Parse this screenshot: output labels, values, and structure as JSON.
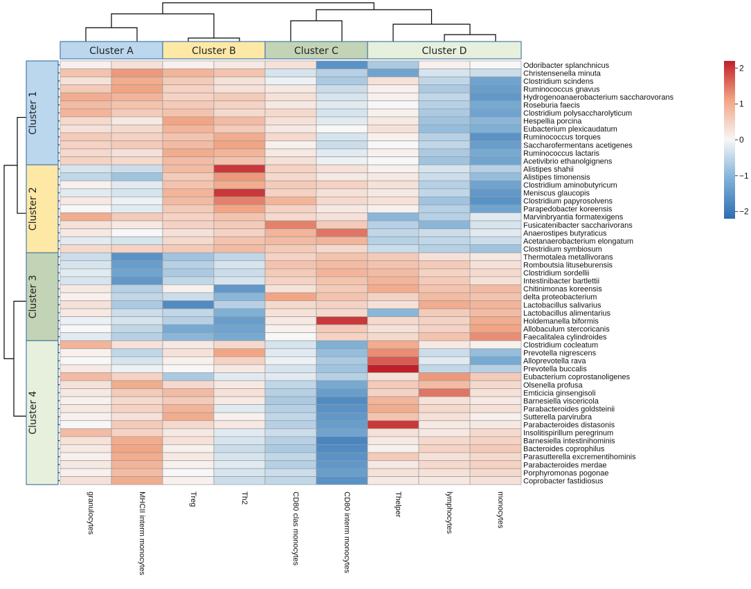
{
  "chart_data": {
    "type": "heatmap",
    "color_scale": {
      "min": -2.2,
      "max": 2.2,
      "low_color": "#2c6db3",
      "mid_color": "#f7f7f7",
      "high_color": "#c0202a",
      "ticks": [
        2,
        1,
        0,
        -1,
        -2
      ],
      "tick_labels": [
        "2",
        "1",
        "0",
        "−1",
        "−2"
      ]
    },
    "column_clusters": [
      {
        "name": "Cluster A",
        "span": [
          0,
          1
        ],
        "color": "#bad7ee"
      },
      {
        "name": "Cluster B",
        "span": [
          2,
          3
        ],
        "color": "#fde8a6"
      },
      {
        "name": "Cluster C",
        "span": [
          4,
          5
        ],
        "color": "#c3d3b5"
      },
      {
        "name": "Cluster D",
        "span": [
          6,
          8
        ],
        "color": "#e6f0dc"
      }
    ],
    "row_clusters": [
      {
        "name": "Cluster 1",
        "span": [
          0,
          12
        ],
        "color": "#bad7ee"
      },
      {
        "name": "Cluster 2",
        "span": [
          13,
          23
        ],
        "color": "#fde8a6"
      },
      {
        "name": "Cluster 3",
        "span": [
          24,
          34
        ],
        "color": "#c3d3b5"
      },
      {
        "name": "Cluster 4",
        "span": [
          35,
          52
        ],
        "color": "#e6f0dc"
      }
    ],
    "columns": [
      "granulocytes",
      "MHCII interm monocytes",
      "Treg",
      "Th2",
      "CD80 clas monocytes",
      "CD80 interm monocytes",
      "Thelper",
      "lymphocytes",
      "monocytes"
    ],
    "rows": [
      "Odoribacter splanchnicus",
      "Christensenella minuta",
      "Clostridium scindens",
      "Ruminococcus gnavus",
      "Hydrogenoanaerobacterium saccharovorans",
      "Roseburia faecis",
      "Clostridium polysaccharolyticum",
      "Hespellia porcina",
      "Eubacterium plexicaudatum",
      "Ruminococcus torques",
      "Saccharofermentans acetigenes",
      "Ruminococcus lactaris",
      "Acetivibrio ethanolgignens",
      "Alistipes shahii",
      "Alistipes timonensis",
      "Clostridium aminobutyricum",
      "Meniscus glaucopis",
      "Clostridium papyrosolvens",
      "Parapedobacter koreensis",
      "Marvinbryantia formatexigens",
      "Fusicatenibacter saccharivorans",
      "Anaerostipes butyraticus",
      "Acetanaerobacterium elongatum",
      "Clostridium symbiosum",
      "Thermotalea metallivorans",
      "Romboutsia lituseburensis",
      "Clostridium sordellii",
      "Intestinibacter bartlettii",
      "Chitinimonas koreensis",
      "delta proteobacterium",
      "Lactobacillus salivarius",
      "Lactobacillus alimentarius",
      "Holdemanella biformis",
      "Allobaculum stercoricanis",
      "Faecalitalea cylindroides",
      "Clostridium cocleatum",
      "Prevotella nigrescens",
      "Alloprevotella rava",
      "Prevotella buccalis",
      "Eubacterium coprostanoligenes",
      "Olsenella profusa",
      "Emticicia ginsengisoli",
      "Barnesiella viscericola",
      "Parabacteroides goldsteinii",
      "Sutterella parvirubra",
      "Parabacteroides distasonis",
      "Insolitispirillum peregrinum",
      "Barnesiella intestinihominis",
      "Bacteroides coprophilus",
      "Parasutterella excrementihominis",
      "Parabacteroides merdae",
      "Porphyromonas pogonae",
      "Coprobacter fastidiosus"
    ],
    "values": [
      [
        0.1,
        0.3,
        0.1,
        0.2,
        0.3,
        -1.6,
        -0.7,
        0.1,
        0.0
      ],
      [
        0.7,
        1.2,
        0.9,
        0.7,
        -0.3,
        -0.6,
        -1.3,
        -0.3,
        -0.4
      ],
      [
        0.3,
        1.0,
        0.6,
        0.3,
        -0.1,
        -0.7,
        0.3,
        -0.5,
        -1.3
      ],
      [
        0.6,
        1.1,
        0.5,
        0.3,
        0.2,
        -0.4,
        0.1,
        -0.7,
        -1.4
      ],
      [
        1.0,
        0.9,
        0.5,
        0.6,
        0.3,
        -0.3,
        0.1,
        -0.5,
        -1.5
      ],
      [
        0.8,
        0.7,
        0.6,
        0.5,
        0.2,
        -0.2,
        0.0,
        -0.6,
        -1.2
      ],
      [
        0.9,
        0.6,
        0.7,
        0.4,
        0.4,
        -0.3,
        0.1,
        -0.7,
        -1.3
      ],
      [
        0.4,
        0.2,
        1.1,
        0.8,
        0.3,
        -0.2,
        0.2,
        -0.8,
        -1.0
      ],
      [
        0.3,
        0.4,
        0.9,
        0.6,
        0.2,
        0.0,
        0.3,
        -0.9,
        -1.1
      ],
      [
        0.6,
        0.5,
        0.7,
        1.0,
        0.4,
        -0.3,
        0.1,
        -0.6,
        -1.6
      ],
      [
        0.5,
        0.6,
        0.8,
        1.1,
        0.1,
        -0.4,
        0.0,
        -0.5,
        -1.4
      ],
      [
        0.4,
        0.3,
        1.0,
        0.9,
        0.2,
        -0.2,
        0.1,
        -0.7,
        -1.2
      ],
      [
        0.5,
        0.4,
        0.8,
        0.7,
        0.3,
        -0.1,
        0.0,
        -0.8,
        -1.3
      ],
      [
        -0.3,
        -0.4,
        0.8,
        2.0,
        0.5,
        0.3,
        0.1,
        -0.3,
        -0.6
      ],
      [
        -0.5,
        -0.8,
        0.6,
        1.2,
        0.4,
        0.2,
        0.2,
        -0.4,
        -0.9
      ],
      [
        0.1,
        -0.2,
        0.7,
        1.0,
        0.6,
        0.5,
        0.3,
        -0.6,
        -1.3
      ],
      [
        -0.2,
        -0.3,
        0.9,
        2.0,
        0.5,
        0.3,
        0.2,
        -0.5,
        -1.5
      ],
      [
        0.2,
        -0.1,
        0.8,
        1.4,
        0.9,
        0.4,
        0.3,
        -0.8,
        -1.6
      ],
      [
        0.0,
        -0.2,
        0.6,
        1.1,
        0.5,
        0.2,
        0.1,
        -0.6,
        -1.3
      ],
      [
        1.0,
        0.6,
        0.5,
        0.7,
        0.4,
        0.3,
        -1.0,
        -0.6,
        -0.2
      ],
      [
        0.3,
        0.2,
        0.5,
        0.6,
        1.4,
        0.6,
        -0.6,
        -1.0,
        -0.3
      ],
      [
        0.2,
        0.0,
        0.3,
        0.5,
        0.9,
        1.5,
        -0.5,
        -0.4,
        -0.2
      ],
      [
        -0.2,
        -0.3,
        0.4,
        0.7,
        0.8,
        0.9,
        -0.6,
        -0.5,
        -0.4
      ],
      [
        0.4,
        0.5,
        0.6,
        0.8,
        0.6,
        0.4,
        -0.4,
        -0.6,
        -0.8
      ],
      [
        -0.4,
        -1.6,
        -0.8,
        -0.5,
        0.5,
        0.7,
        0.6,
        0.3,
        0.2
      ],
      [
        -0.3,
        -1.4,
        -0.6,
        -0.3,
        0.7,
        0.8,
        0.7,
        0.6,
        0.3
      ],
      [
        -0.2,
        -1.3,
        -0.7,
        -0.4,
        0.6,
        0.9,
        0.8,
        0.5,
        0.4
      ],
      [
        -0.3,
        -1.5,
        -0.5,
        -0.3,
        0.5,
        0.7,
        0.9,
        0.6,
        0.3
      ],
      [
        0.2,
        -0.6,
        0.1,
        -1.5,
        0.3,
        0.6,
        1.0,
        0.7,
        0.8
      ],
      [
        0.1,
        -0.5,
        -0.4,
        -1.0,
        1.1,
        0.7,
        0.5,
        0.8,
        0.7
      ],
      [
        0.3,
        -0.7,
        -1.7,
        -0.6,
        0.4,
        0.5,
        0.3,
        1.0,
        0.9
      ],
      [
        0.2,
        -0.4,
        -0.5,
        -1.1,
        0.3,
        0.4,
        -1.0,
        0.6,
        0.8
      ],
      [
        -0.1,
        -0.3,
        -0.6,
        -1.4,
        0.2,
        2.0,
        0.4,
        0.5,
        1.0
      ],
      [
        0.0,
        -0.5,
        -1.2,
        -1.3,
        0.1,
        0.6,
        0.3,
        0.5,
        1.1
      ],
      [
        -0.2,
        -0.6,
        -1.0,
        -1.2,
        0.0,
        0.5,
        0.4,
        0.7,
        1.3
      ],
      [
        0.9,
        0.3,
        0.2,
        0.4,
        -0.3,
        -1.1,
        1.0,
        0.2,
        0.1
      ],
      [
        0.1,
        -0.5,
        0.3,
        1.1,
        -0.2,
        -0.9,
        1.3,
        -0.4,
        -0.9
      ],
      [
        0.0,
        -0.3,
        0.1,
        0.5,
        -0.1,
        -0.7,
        1.7,
        -0.2,
        -1.2
      ],
      [
        0.2,
        -0.1,
        0.0,
        0.2,
        -0.3,
        -0.8,
        2.2,
        -0.5,
        -0.6
      ],
      [
        0.8,
        0.5,
        -0.7,
        -0.2,
        -0.2,
        -0.6,
        0.3,
        1.2,
        0.6
      ],
      [
        0.3,
        1.0,
        0.4,
        0.2,
        -0.5,
        -1.2,
        0.6,
        0.8,
        0.4
      ],
      [
        0.2,
        0.6,
        0.8,
        0.3,
        -0.6,
        -1.4,
        0.5,
        1.5,
        0.3
      ],
      [
        0.1,
        0.4,
        0.6,
        0.2,
        -0.7,
        -1.7,
        0.9,
        0.3,
        0.2
      ],
      [
        0.2,
        0.5,
        0.9,
        -0.2,
        -0.6,
        -1.6,
        1.0,
        0.4,
        0.3
      ],
      [
        0.1,
        0.3,
        1.0,
        0.1,
        -0.5,
        -1.5,
        0.7,
        0.3,
        0.1
      ],
      [
        0.0,
        0.6,
        0.4,
        0.2,
        -0.6,
        -1.4,
        2.0,
        0.2,
        0.2
      ],
      [
        0.8,
        0.5,
        0.2,
        -0.2,
        -0.4,
        -1.3,
        0.3,
        0.2,
        0.4
      ],
      [
        0.3,
        1.0,
        0.3,
        -0.3,
        -0.6,
        -1.8,
        0.2,
        0.4,
        0.5
      ],
      [
        0.2,
        1.1,
        0.1,
        -0.4,
        -0.7,
        -1.7,
        0.1,
        0.5,
        0.6
      ],
      [
        0.1,
        1.0,
        0.2,
        -0.3,
        -0.5,
        -1.6,
        0.6,
        0.3,
        0.4
      ],
      [
        0.2,
        0.9,
        0.1,
        -0.2,
        -0.6,
        -1.5,
        0.2,
        0.4,
        0.5
      ],
      [
        0.1,
        0.8,
        0.0,
        -0.3,
        -0.4,
        -1.4,
        0.3,
        0.3,
        0.4
      ],
      [
        0.3,
        1.0,
        0.1,
        -0.4,
        -0.5,
        -1.6,
        0.2,
        0.2,
        0.3
      ]
    ]
  }
}
